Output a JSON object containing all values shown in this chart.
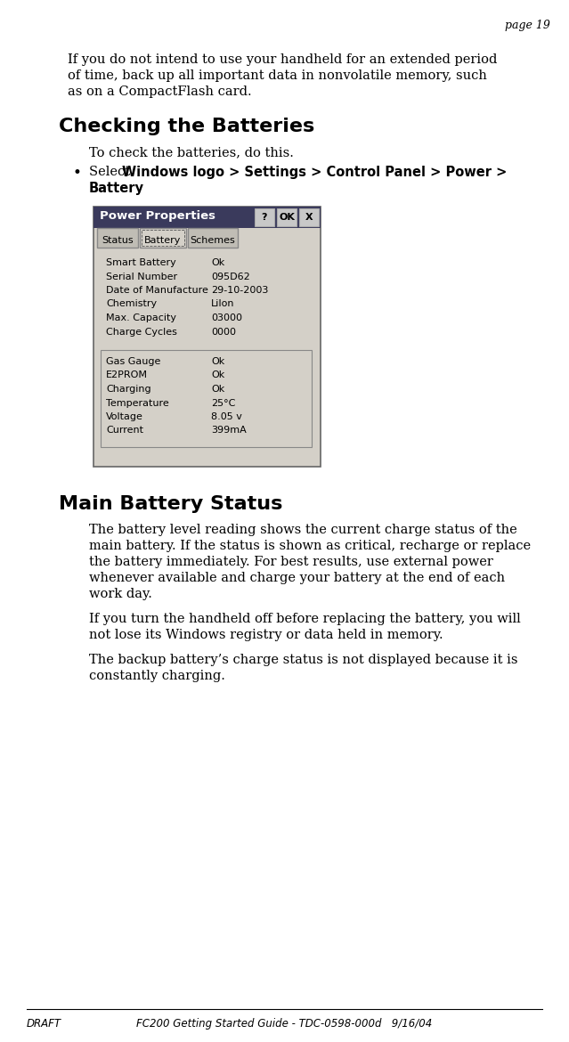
{
  "bg_color": "#ffffff",
  "text_color": "#000000",
  "page_label": "page 19",
  "footer_left": "DRAFT",
  "footer_center": "FC200 Getting Started Guide - TDC-0598-000d   9/16/04",
  "intro_lines": [
    "If you do not intend to use your handheld for an extended period",
    "of time, back up all important data in nonvolatile memory, such",
    "as on a CompactFlash card."
  ],
  "section1_title": "Checking the Batteries",
  "section1_body": "To check the batteries, do this.",
  "bullet_normal": "Select ",
  "bullet_bold": "Windows logo > Settings > Control Panel > Power >",
  "bullet_bold2": "Battery",
  "bullet_end": ".",
  "dialog_title": "Power Properties",
  "tab_labels": [
    "Status",
    "Battery",
    "Schemes"
  ],
  "active_tab": 1,
  "dialog_rows1": [
    [
      "Smart Battery",
      "Ok"
    ],
    [
      "Serial Number",
      "095D62"
    ],
    [
      "Date of Manufacture",
      "29-10-2003"
    ],
    [
      "Chemistry",
      "LiIon"
    ],
    [
      "Max. Capacity",
      "03000"
    ],
    [
      "Charge Cycles",
      "0000"
    ]
  ],
  "dialog_rows2": [
    [
      "Gas Gauge",
      "Ok"
    ],
    [
      "E2PROM",
      "Ok"
    ],
    [
      "Charging",
      "Ok"
    ],
    [
      "Temperature",
      "25°C"
    ],
    [
      "Voltage",
      "8.05 v"
    ],
    [
      "Current",
      "399mA"
    ]
  ],
  "section2_title": "Main Battery Status",
  "para1_lines": [
    "The battery level reading shows the current charge status of the",
    "main battery. If the status is shown as critical, recharge or replace",
    "the battery immediately. For best results, use external power",
    "whenever available and charge your battery at the end of each",
    "work day."
  ],
  "para2_lines": [
    "If you turn the handheld off before replacing the battery, you will",
    "not lose its Windows registry or data held in memory."
  ],
  "para3_lines": [
    "The backup battery’s charge status is not displayed because it is",
    "constantly charging."
  ]
}
